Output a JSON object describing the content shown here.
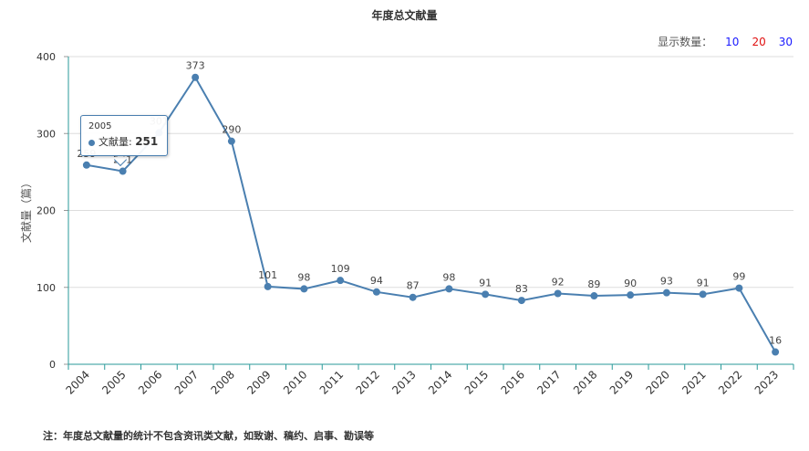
{
  "chart_title": "年度总文献量",
  "display_count": {
    "label": "显示数量：",
    "options": [
      {
        "label": "10",
        "color": "#1a1aff"
      },
      {
        "label": "20",
        "color": "#e01010"
      },
      {
        "label": "30",
        "color": "#1a1aff"
      }
    ]
  },
  "tooltip": {
    "year": "2005",
    "series_label": "文献量",
    "separator": ": ",
    "value": "251"
  },
  "footnote": "注：年度总文献量的统计不包含资讯类文献，如致谢、稿约、启事、勘误等",
  "colors": {
    "line": "#4a7fb0",
    "axis": "#2a9a9a",
    "grid": "#dddddd"
  },
  "chart_data": {
    "type": "line",
    "title": "年度总文献量",
    "xlabel": "",
    "ylabel": "文献量（篇）",
    "ylim": [
      0,
      400
    ],
    "yticks": [
      0,
      100,
      200,
      300,
      400
    ],
    "grid": true,
    "categories": [
      "2004",
      "2005",
      "2006",
      "2007",
      "2008",
      "2009",
      "2010",
      "2011",
      "2012",
      "2013",
      "2014",
      "2015",
      "2016",
      "2017",
      "2018",
      "2019",
      "2020",
      "2021",
      "2022",
      "2023"
    ],
    "series": [
      {
        "name": "文献量",
        "values": [
          259,
          251,
          301,
          373,
          290,
          101,
          98,
          109,
          94,
          87,
          98,
          91,
          83,
          92,
          89,
          90,
          93,
          91,
          99,
          16
        ]
      }
    ]
  }
}
